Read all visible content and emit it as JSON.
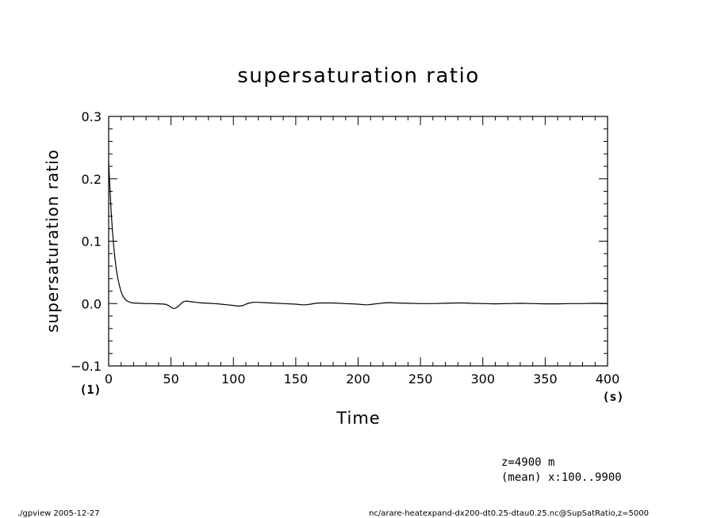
{
  "chart_data": {
    "type": "line",
    "title": "supersaturation ratio",
    "xlabel": "Time",
    "ylabel": "supersaturation ratio",
    "x_unit": "(s)",
    "y_unit": "(1)",
    "xlim": [
      0,
      400
    ],
    "ylim": [
      -0.1,
      0.3
    ],
    "x_ticks": [
      0,
      50,
      100,
      150,
      200,
      250,
      300,
      350,
      400
    ],
    "x_tick_labels": [
      "0",
      "50",
      "100",
      "150",
      "200",
      "250",
      "300",
      "350",
      "400"
    ],
    "y_ticks": [
      -0.1,
      0.0,
      0.1,
      0.2,
      0.3
    ],
    "y_tick_labels": [
      "−0.1",
      "0.0",
      "0.1",
      "0.2",
      "0.3"
    ],
    "grid": false,
    "series": [
      {
        "x": [
          0,
          1,
          2,
          3,
          4,
          5,
          6,
          7,
          8,
          9,
          10,
          11,
          12,
          14,
          16,
          18,
          20,
          25,
          30,
          35,
          40,
          45,
          48,
          50,
          52,
          54,
          56,
          58,
          60,
          62,
          64,
          66,
          70,
          75,
          80,
          85,
          90,
          95,
          100,
          103,
          105,
          108,
          110,
          113,
          116,
          120,
          125,
          130,
          140,
          150,
          155,
          158,
          162,
          166,
          170,
          175,
          180,
          190,
          200,
          205,
          208,
          212,
          216,
          220,
          225,
          230,
          240,
          250,
          260,
          270,
          280,
          285,
          290,
          300,
          310,
          320,
          330,
          340,
          350,
          360,
          370,
          380,
          390,
          400
        ],
        "y": [
          0.227,
          0.185,
          0.148,
          0.118,
          0.093,
          0.073,
          0.057,
          0.044,
          0.034,
          0.026,
          0.019,
          0.014,
          0.01,
          0.005,
          0.003,
          0.0015,
          0.001,
          0.0005,
          0.0,
          0.0,
          -0.0005,
          -0.001,
          -0.003,
          -0.006,
          -0.008,
          -0.007,
          -0.004,
          0.0,
          0.003,
          0.004,
          0.0035,
          0.003,
          0.002,
          0.001,
          0.0005,
          0.0,
          -0.001,
          -0.002,
          -0.003,
          -0.004,
          -0.004,
          -0.003,
          -0.001,
          0.001,
          0.002,
          0.002,
          0.0015,
          0.001,
          0.0,
          -0.001,
          -0.002,
          -0.002,
          -0.001,
          0.0005,
          0.001,
          0.001,
          0.001,
          0.0,
          -0.001,
          -0.002,
          -0.002,
          -0.001,
          0.0,
          0.001,
          0.0015,
          0.001,
          0.0005,
          0.0,
          0.0,
          0.0005,
          0.001,
          0.001,
          0.0005,
          0.0,
          -0.0005,
          0.0,
          0.0005,
          0.0,
          -0.0005,
          -0.0005,
          0.0,
          0.0,
          0.0005,
          0.0
        ]
      }
    ]
  },
  "annotations": {
    "z_label": "z=4900  m",
    "mean_label": "(mean) x:100..9900"
  },
  "footer": {
    "left": "./gpview  2005-12-27",
    "right": "nc/arare-heatexpand-dx200-dt0.25-dtau0.25.nc@SupSatRatio,z=5000"
  }
}
